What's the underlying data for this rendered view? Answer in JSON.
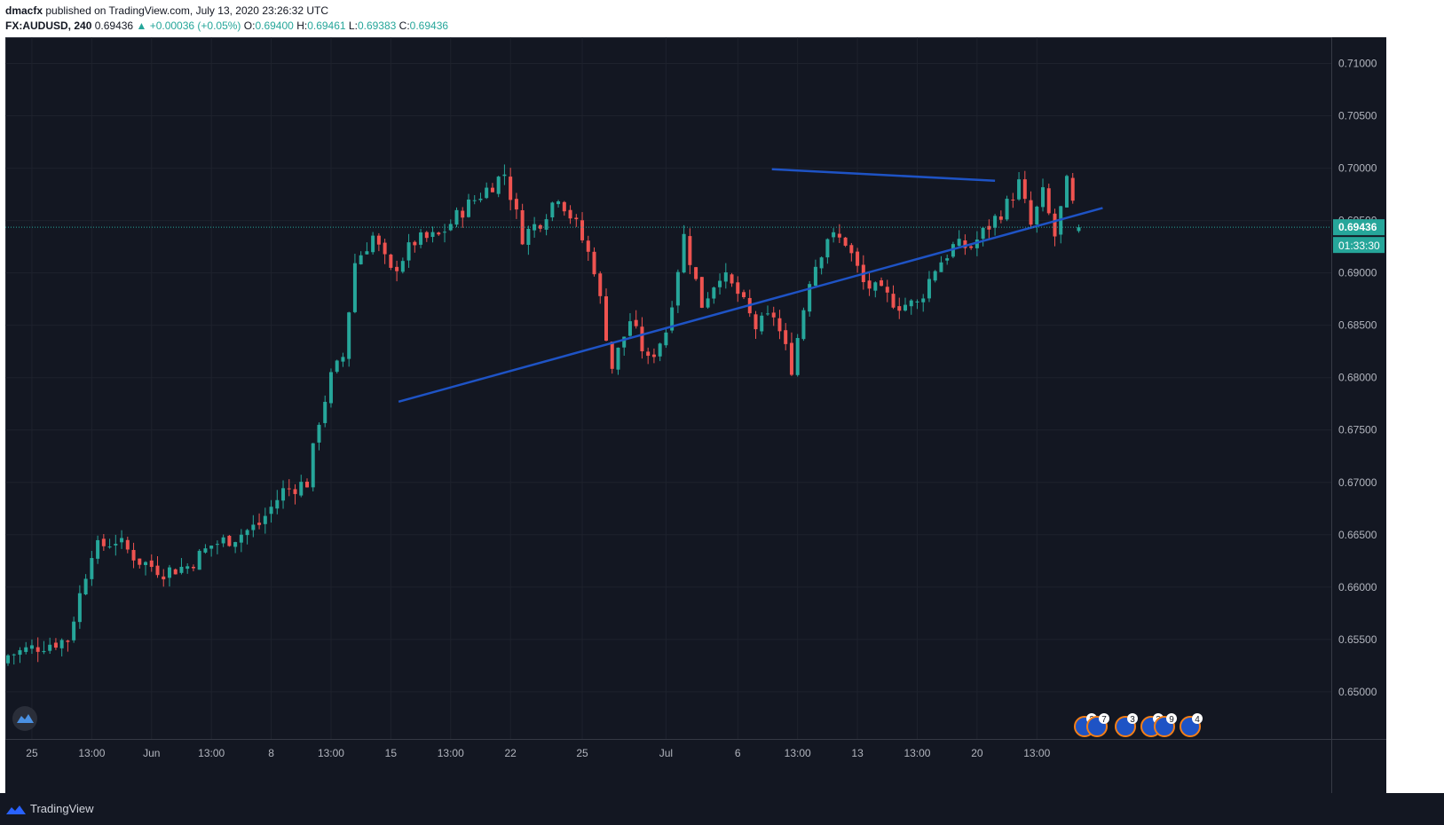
{
  "header": {
    "author": "dmacfx",
    "published_text": "published on TradingView.com, July 13, 2020 23:26:32 UTC",
    "symbol": "FX:AUDUSD",
    "interval": "240",
    "last": "0.69436",
    "change_arrow": "▲",
    "change": "+0.00036 (+0.05%)",
    "open_label": "O:",
    "open": "0.69400",
    "high_label": "H:",
    "high": "0.69461",
    "low_label": "L:",
    "low": "0.69383",
    "close_label": "C:",
    "close": "0.69436"
  },
  "footer": {
    "brand": "TradingView",
    "logo_icon": "tradingview-logo-icon"
  },
  "chart_data": {
    "type": "candlestick",
    "title": "",
    "xlabel": "",
    "ylabel": "",
    "ylim": [
      0.6455,
      0.7125
    ],
    "grid": true,
    "colors": {
      "up": "#26a69a",
      "down": "#ef5350",
      "trendline": "#1e53c5",
      "background": "#131722",
      "price_label_bg": "#26a69a"
    },
    "y_ticks": [
      "0.71000",
      "0.70500",
      "0.70000",
      "0.69500",
      "0.69000",
      "0.68500",
      "0.68000",
      "0.67500",
      "0.67000",
      "0.66500",
      "0.66000",
      "0.65500",
      "0.65000"
    ],
    "x_ticks": [
      "25",
      "13:00",
      "Jun",
      "13:00",
      "8",
      "13:00",
      "15",
      "13:00",
      "22",
      "25",
      "Jul",
      "6",
      "13:00",
      "13",
      "13:00",
      "20",
      "13:00"
    ],
    "current_price": "0.69436",
    "countdown": "01:33:30",
    "candle_count": 180,
    "close_anchors": [
      {
        "i": 0,
        "c": 0.6535
      },
      {
        "i": 6,
        "c": 0.6545
      },
      {
        "i": 10,
        "c": 0.655
      },
      {
        "i": 14,
        "c": 0.6635
      },
      {
        "i": 18,
        "c": 0.6645
      },
      {
        "i": 22,
        "c": 0.6625
      },
      {
        "i": 26,
        "c": 0.6615
      },
      {
        "i": 30,
        "c": 0.662
      },
      {
        "i": 34,
        "c": 0.664
      },
      {
        "i": 38,
        "c": 0.6648
      },
      {
        "i": 42,
        "c": 0.666
      },
      {
        "i": 46,
        "c": 0.6692
      },
      {
        "i": 50,
        "c": 0.67
      },
      {
        "i": 52,
        "c": 0.676
      },
      {
        "i": 54,
        "c": 0.68
      },
      {
        "i": 56,
        "c": 0.682
      },
      {
        "i": 58,
        "c": 0.691
      },
      {
        "i": 61,
        "c": 0.6935
      },
      {
        "i": 64,
        "c": 0.69
      },
      {
        "i": 68,
        "c": 0.693
      },
      {
        "i": 72,
        "c": 0.6935
      },
      {
        "i": 76,
        "c": 0.696
      },
      {
        "i": 80,
        "c": 0.698
      },
      {
        "i": 83,
        "c": 0.6995
      },
      {
        "i": 86,
        "c": 0.6935
      },
      {
        "i": 89,
        "c": 0.695
      },
      {
        "i": 92,
        "c": 0.6975
      },
      {
        "i": 95,
        "c": 0.6945
      },
      {
        "i": 98,
        "c": 0.6905
      },
      {
        "i": 101,
        "c": 0.681
      },
      {
        "i": 104,
        "c": 0.6855
      },
      {
        "i": 107,
        "c": 0.6815
      },
      {
        "i": 110,
        "c": 0.6845
      },
      {
        "i": 113,
        "c": 0.6935
      },
      {
        "i": 116,
        "c": 0.687
      },
      {
        "i": 119,
        "c": 0.69
      },
      {
        "i": 122,
        "c": 0.688
      },
      {
        "i": 125,
        "c": 0.6848
      },
      {
        "i": 128,
        "c": 0.686
      },
      {
        "i": 131,
        "c": 0.681
      },
      {
        "i": 134,
        "c": 0.6895
      },
      {
        "i": 137,
        "c": 0.6935
      },
      {
        "i": 140,
        "c": 0.693
      },
      {
        "i": 143,
        "c": 0.689
      },
      {
        "i": 146,
        "c": 0.688
      },
      {
        "i": 149,
        "c": 0.687
      },
      {
        "i": 152,
        "c": 0.687
      },
      {
        "i": 155,
        "c": 0.6905
      },
      {
        "i": 158,
        "c": 0.6925
      },
      {
        "i": 161,
        "c": 0.6925
      },
      {
        "i": 164,
        "c": 0.6945
      },
      {
        "i": 167,
        "c": 0.6965
      },
      {
        "i": 169,
        "c": 0.6985
      },
      {
        "i": 171,
        "c": 0.6945
      },
      {
        "i": 173,
        "c": 0.6975
      },
      {
        "i": 175,
        "c": 0.6935
      },
      {
        "i": 177,
        "c": 0.6985
      },
      {
        "i": 179,
        "c": 0.69436
      }
    ],
    "trendlines": [
      {
        "name": "",
        "x1": 65.3,
        "y1": 0.6777,
        "x2": 183.0,
        "y2": 0.6962
      },
      {
        "name": "",
        "x1": 127.7,
        "y1": 0.6999,
        "x2": 165.0,
        "y2": 0.6988
      }
    ],
    "events": [
      "2",
      "7",
      "3",
      "3",
      "9",
      "4"
    ]
  }
}
